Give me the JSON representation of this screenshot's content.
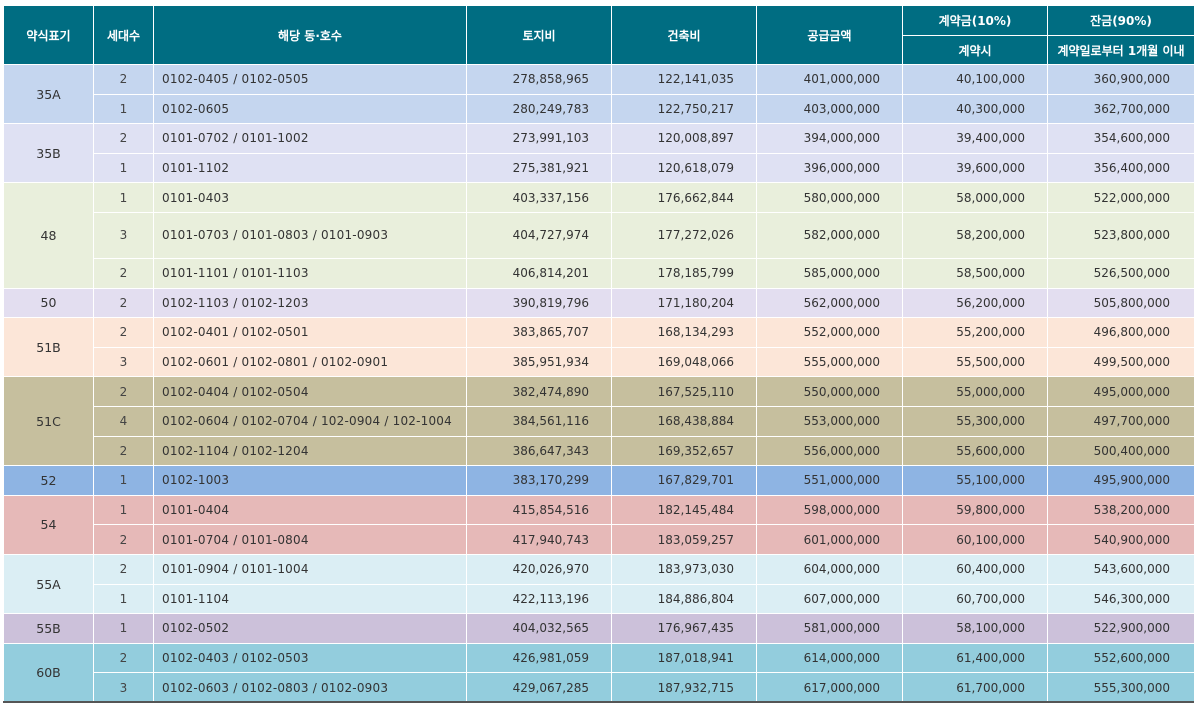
{
  "headers": {
    "type": "약식표기",
    "count": "세대수",
    "units": "해당 동·호수",
    "land": "토지비",
    "building": "건축비",
    "supply": "공급금액",
    "deposit": "계약금(10%)",
    "deposit_sub": "계약시",
    "balance": "잔금(90%)",
    "balance_sub": "계약일로부터 1개월 이내"
  },
  "groups": [
    {
      "type": "35A",
      "color": "#c5d6ef",
      "rows": [
        {
          "count": "2",
          "units": "0102-0405 / 0102-0505",
          "land": "278,858,965",
          "building": "122,141,035",
          "supply": "401,000,000",
          "deposit": "40,100,000",
          "balance": "360,900,000"
        },
        {
          "count": "1",
          "units": "0102-0605",
          "land": "280,249,783",
          "building": "122,750,217",
          "supply": "403,000,000",
          "deposit": "40,300,000",
          "balance": "362,700,000"
        }
      ]
    },
    {
      "type": "35B",
      "color": "#dfe1f3",
      "rows": [
        {
          "count": "2",
          "units": "0101-0702 / 0101-1002",
          "land": "273,991,103",
          "building": "120,008,897",
          "supply": "394,000,000",
          "deposit": "39,400,000",
          "balance": "354,600,000"
        },
        {
          "count": "1",
          "units": "0101-1102",
          "land": "275,381,921",
          "building": "120,618,079",
          "supply": "396,000,000",
          "deposit": "39,600,000",
          "balance": "356,400,000"
        }
      ]
    },
    {
      "type": "48",
      "color": "#e9efdc",
      "rows": [
        {
          "count": "1",
          "units": "0101-0403",
          "land": "403,337,156",
          "building": "176,662,844",
          "supply": "580,000,000",
          "deposit": "58,000,000",
          "balance": "522,000,000"
        },
        {
          "count": "3",
          "units": "0101-0703 / 0101-0803 / 0101-0903",
          "land": "404,727,974",
          "building": "177,272,026",
          "supply": "582,000,000",
          "deposit": "58,200,000",
          "balance": "523,800,000",
          "tall": true
        },
        {
          "count": "2",
          "units": "0101-1101 / 0101-1103",
          "land": "406,814,201",
          "building": "178,185,799",
          "supply": "585,000,000",
          "deposit": "58,500,000",
          "balance": "526,500,000"
        }
      ]
    },
    {
      "type": "50",
      "color": "#e3def0",
      "rows": [
        {
          "count": "2",
          "units": "0102-1103 / 0102-1203",
          "land": "390,819,796",
          "building": "171,180,204",
          "supply": "562,000,000",
          "deposit": "56,200,000",
          "balance": "505,800,000"
        }
      ]
    },
    {
      "type": "51B",
      "color": "#fce6d8",
      "rows": [
        {
          "count": "2",
          "units": "0102-0401 / 0102-0501",
          "land": "383,865,707",
          "building": "168,134,293",
          "supply": "552,000,000",
          "deposit": "55,200,000",
          "balance": "496,800,000"
        },
        {
          "count": "3",
          "units": "0102-0601 / 0102-0801 / 0102-0901",
          "land": "385,951,934",
          "building": "169,048,066",
          "supply": "555,000,000",
          "deposit": "55,500,000",
          "balance": "499,500,000"
        }
      ]
    },
    {
      "type": "51C",
      "color": "#c6bf9e",
      "rows": [
        {
          "count": "2",
          "units": "0102-0404 / 0102-0504",
          "land": "382,474,890",
          "building": "167,525,110",
          "supply": "550,000,000",
          "deposit": "55,000,000",
          "balance": "495,000,000"
        },
        {
          "count": "4",
          "units": "0102-0604 / 0102-0704 / 102-0904 / 102-1004",
          "land": "384,561,116",
          "building": "168,438,884",
          "supply": "553,000,000",
          "deposit": "55,300,000",
          "balance": "497,700,000"
        },
        {
          "count": "2",
          "units": "0102-1104 / 0102-1204",
          "land": "386,647,343",
          "building": "169,352,657",
          "supply": "556,000,000",
          "deposit": "55,600,000",
          "balance": "500,400,000"
        }
      ]
    },
    {
      "type": "52",
      "color": "#8eb4e3",
      "rows": [
        {
          "count": "1",
          "units": "0102-1003",
          "land": "383,170,299",
          "building": "167,829,701",
          "supply": "551,000,000",
          "deposit": "55,100,000",
          "balance": "495,900,000"
        }
      ]
    },
    {
      "type": "54",
      "color": "#e6b9b8",
      "rows": [
        {
          "count": "1",
          "units": "0101-0404",
          "land": "415,854,516",
          "building": "182,145,484",
          "supply": "598,000,000",
          "deposit": "59,800,000",
          "balance": "538,200,000"
        },
        {
          "count": "2",
          "units": "0101-0704 / 0101-0804",
          "land": "417,940,743",
          "building": "183,059,257",
          "supply": "601,000,000",
          "deposit": "60,100,000",
          "balance": "540,900,000"
        }
      ]
    },
    {
      "type": "55A",
      "color": "#dbeef4",
      "rows": [
        {
          "count": "2",
          "units": "0101-0904 / 0101-1004",
          "land": "420,026,970",
          "building": "183,973,030",
          "supply": "604,000,000",
          "deposit": "60,400,000",
          "balance": "543,600,000"
        },
        {
          "count": "1",
          "units": "0101-1104",
          "land": "422,113,196",
          "building": "184,886,804",
          "supply": "607,000,000",
          "deposit": "60,700,000",
          "balance": "546,300,000"
        }
      ]
    },
    {
      "type": "55B",
      "color": "#ccc1da",
      "rows": [
        {
          "count": "1",
          "units": "0102-0502",
          "land": "404,032,565",
          "building": "176,967,435",
          "supply": "581,000,000",
          "deposit": "58,100,000",
          "balance": "522,900,000"
        }
      ]
    },
    {
      "type": "60B",
      "color": "#93cddd",
      "rows": [
        {
          "count": "2",
          "units": "0102-0403 / 0102-0503",
          "land": "426,981,059",
          "building": "187,018,941",
          "supply": "614,000,000",
          "deposit": "61,400,000",
          "balance": "552,600,000"
        },
        {
          "count": "3",
          "units": "0102-0603 / 0102-0803 / 0102-0903",
          "land": "429,067,285",
          "building": "187,932,715",
          "supply": "617,000,000",
          "deposit": "61,700,000",
          "balance": "555,300,000"
        }
      ]
    }
  ]
}
